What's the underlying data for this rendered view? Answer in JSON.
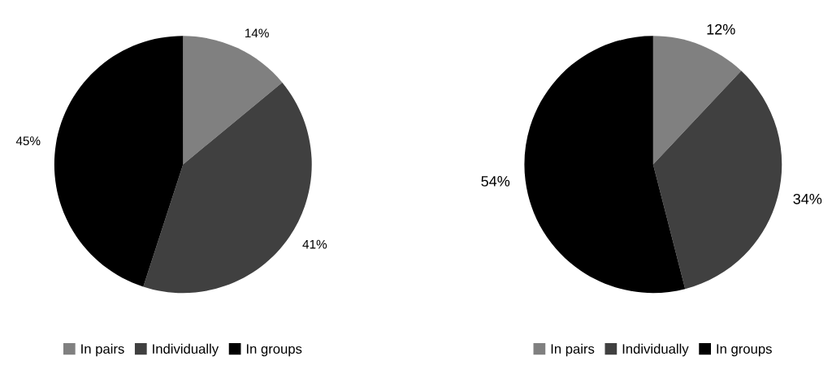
{
  "chart_data": [
    {
      "type": "pie",
      "categories": [
        "In pairs",
        "Individually",
        "In groups"
      ],
      "values": [
        14,
        41,
        45
      ],
      "colors": [
        "#808080",
        "#404040",
        "#000000"
      ],
      "value_labels": [
        "14%",
        "41%",
        "45%"
      ],
      "legend": "bottom"
    },
    {
      "type": "pie",
      "categories": [
        "In pairs",
        "Individually",
        "In groups"
      ],
      "values": [
        12,
        34,
        54
      ],
      "colors": [
        "#808080",
        "#404040",
        "#000000"
      ],
      "value_labels": [
        "12%",
        "34%",
        "54%"
      ],
      "legend": "bottom"
    }
  ]
}
